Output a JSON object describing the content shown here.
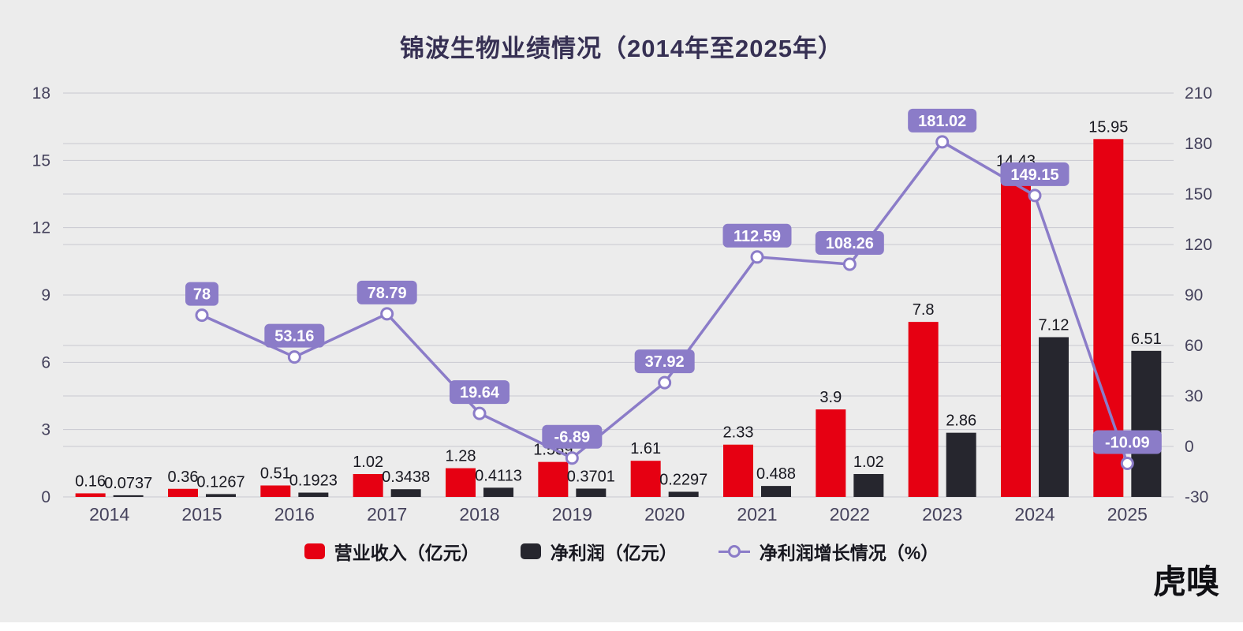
{
  "branding": {
    "logo_text": "虎嗅"
  },
  "chart_data": {
    "type": "bar+line",
    "title": "锦波生物业绩情况（2014年至2025年）",
    "categories": [
      "2014",
      "2015",
      "2016",
      "2017",
      "2018",
      "2019",
      "2020",
      "2021",
      "2022",
      "2023",
      "2024",
      "2025"
    ],
    "series": [
      {
        "name": "营业收入（亿元）",
        "type": "bar",
        "axis": "left",
        "color": "#e60012",
        "values": [
          0.16,
          0.36,
          0.51,
          1.02,
          1.28,
          1.559,
          1.61,
          2.33,
          3.9,
          7.8,
          14.43,
          15.95
        ],
        "labels": [
          "0.16",
          "0.36",
          "0.51",
          "1.02",
          "1.28",
          "1.559",
          "1.61",
          "2.33",
          "3.9",
          "7.8",
          "14.43",
          "15.95"
        ]
      },
      {
        "name": "净利润（亿元）",
        "type": "bar",
        "axis": "left",
        "color": "#26262e",
        "values": [
          0.0737,
          0.1267,
          0.1923,
          0.3438,
          0.4113,
          0.3701,
          0.2297,
          0.488,
          1.02,
          2.86,
          7.12,
          6.51
        ],
        "labels": [
          "0.0737",
          "0.1267",
          "0.1923",
          "0.3438",
          "0.4113",
          "0.3701",
          "0.2297",
          "0.488",
          "1.02",
          "2.86",
          "7.12",
          "6.51"
        ]
      },
      {
        "name": "净利润增长情况（%）",
        "type": "line",
        "axis": "right",
        "color": "#8b7cc8",
        "values": [
          null,
          78,
          53.16,
          78.79,
          19.64,
          -6.89,
          37.92,
          112.59,
          108.26,
          181.02,
          149.15,
          -10.09
        ],
        "labels": [
          null,
          "78",
          "53.16",
          "78.79",
          "19.64",
          "-6.89",
          "37.92",
          "112.59",
          "108.26",
          "181.02",
          "149.15",
          "-10.09"
        ]
      }
    ],
    "left_axis": {
      "min": 0,
      "max": 18,
      "ticks": [
        0,
        3,
        6,
        9,
        12,
        15,
        18
      ]
    },
    "right_axis": {
      "min": -30,
      "max": 210,
      "ticks": [
        -30,
        0,
        30,
        60,
        90,
        120,
        150,
        180,
        210
      ]
    },
    "grid": true,
    "legend_position": "bottom",
    "colors": {
      "background": "#ececec",
      "grid": "#c9c9d0",
      "badge_bg": "#8b7cc8",
      "badge_text": "#ffffff",
      "axis_text": "#45425c",
      "bar_label_text": "#17171f",
      "title_text": "#363053"
    }
  }
}
